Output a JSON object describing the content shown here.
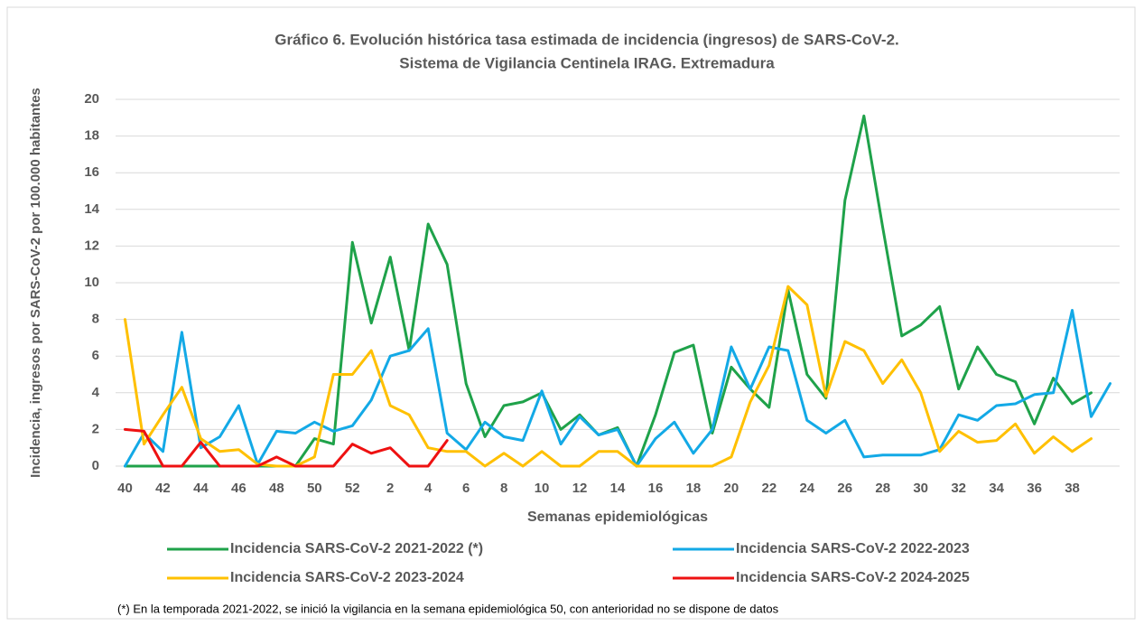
{
  "chart_data": {
    "type": "line",
    "title": "Gráfico 6. Evolución histórica tasa estimada de incidencia (ingresos) de SARS-CoV-2.",
    "subtitle": "Sistema de Vigilancia Centinela IRAG. Extremadura",
    "x_label": "Semanas epidemiológicas",
    "y_label": "Incidencia, ingresos por SARS-CoV-2 por 100.000 habitantes",
    "note": "(*) En la temporada 2021-2022, se inició la vigilancia en la semana epidemiológica 50, con anterioridad no se dispone de datos",
    "categories": [
      40,
      null,
      42,
      null,
      44,
      null,
      46,
      null,
      48,
      null,
      50,
      null,
      52,
      null,
      2,
      null,
      4,
      null,
      6,
      null,
      8,
      null,
      10,
      null,
      12,
      null,
      14,
      null,
      16,
      null,
      18,
      null,
      20,
      null,
      22,
      null,
      24,
      null,
      26,
      null,
      28,
      null,
      30,
      null,
      32,
      null,
      34,
      null,
      36,
      null,
      38,
      null,
      null
    ],
    "ylim": [
      0,
      20
    ],
    "yticks": [
      0,
      2,
      4,
      6,
      8,
      10,
      12,
      14,
      16,
      18,
      20
    ],
    "grid": true,
    "legend": "bottom",
    "series": [
      {
        "name": "Incidencia SARS-CoV-2 2021-2022 (*)",
        "color": "#1fa24a",
        "values": [
          0,
          0,
          0,
          0,
          0,
          0,
          0,
          0,
          0,
          0,
          1.5,
          1.2,
          12.2,
          7.8,
          11.4,
          6.3,
          13.2,
          11.0,
          4.5,
          1.6,
          3.3,
          3.5,
          4.0,
          2.0,
          2.8,
          1.7,
          2.1,
          0,
          2.8,
          6.2,
          6.6,
          1.8,
          5.4,
          4.2,
          3.2,
          9.6,
          5.0,
          3.7,
          14.5,
          19.1,
          13.0,
          7.1,
          7.7,
          8.7,
          4.2,
          6.5,
          5.0,
          4.6,
          2.3,
          4.8,
          3.4,
          4.0,
          null
        ]
      },
      {
        "name": "Incidencia SARS-CoV-2 2022-2023",
        "color": "#13a9e6",
        "values": [
          0,
          1.8,
          0.8,
          7.3,
          1.0,
          1.6,
          3.3,
          0.1,
          1.9,
          1.8,
          2.4,
          1.9,
          2.2,
          3.6,
          6.0,
          6.3,
          7.5,
          1.8,
          0.9,
          2.4,
          1.6,
          1.4,
          4.1,
          1.2,
          2.7,
          1.7,
          2.0,
          0,
          1.5,
          2.4,
          0.7,
          2.0,
          6.5,
          4.2,
          6.5,
          6.3,
          2.5,
          1.8,
          2.5,
          0.5,
          0.6,
          0.6,
          0.6,
          0.9,
          2.8,
          2.5,
          3.3,
          3.4,
          3.9,
          4.0,
          8.5,
          2.7,
          4.5
        ]
      },
      {
        "name": "Incidencia SARS-CoV-2 2023-2024",
        "color": "#ffc000",
        "values": [
          8.0,
          1.2,
          2.8,
          4.3,
          1.5,
          0.8,
          0.9,
          0.1,
          0,
          0,
          0.5,
          5.0,
          5.0,
          6.3,
          3.3,
          2.8,
          1.0,
          0.8,
          0.8,
          0,
          0.7,
          0,
          0.8,
          0,
          0,
          0.8,
          0.8,
          0,
          0,
          0,
          0,
          0,
          0.5,
          3.5,
          5.5,
          9.8,
          8.8,
          3.8,
          6.8,
          6.3,
          4.5,
          5.8,
          4.0,
          0.8,
          1.9,
          1.3,
          1.4,
          2.3,
          0.7,
          1.6,
          0.8,
          1.5,
          null
        ]
      },
      {
        "name": "Incidencia SARS-CoV-2 2024-2025",
        "color": "#ee1111",
        "values": [
          2.0,
          1.9,
          0,
          0,
          1.3,
          0,
          0,
          0,
          0.5,
          0,
          0,
          0,
          1.2,
          0.7,
          1.0,
          0,
          0,
          1.4,
          null,
          null,
          null,
          null,
          null,
          null,
          null,
          null,
          null,
          null,
          null,
          null,
          null,
          null,
          null,
          null,
          null,
          null,
          null,
          null,
          null,
          null,
          null,
          null,
          null,
          null,
          null,
          null,
          null,
          null,
          null,
          null,
          null,
          null,
          null
        ]
      }
    ]
  }
}
